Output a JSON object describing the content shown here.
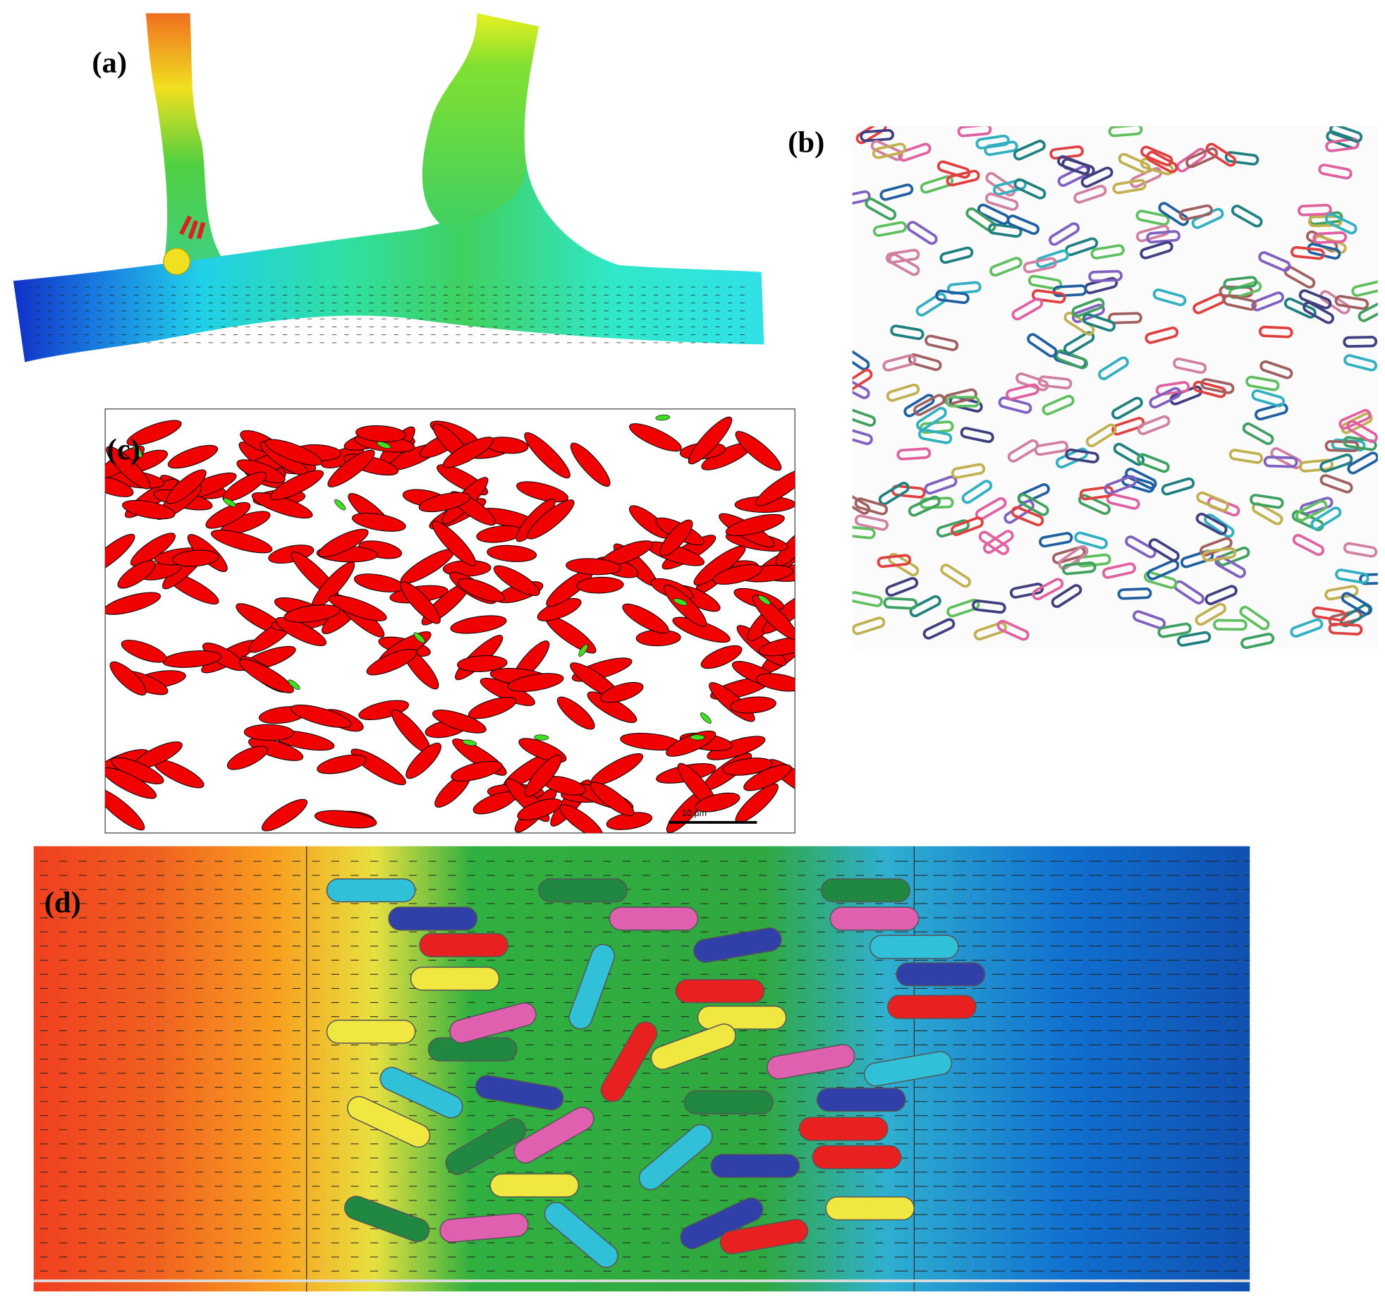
{
  "panels": {
    "a": {
      "label": "(a)"
    },
    "b": {
      "label": "(b)"
    },
    "c": {
      "label": "(c)",
      "scale_bar": "10 µm"
    },
    "d": {
      "label": "(d)"
    }
  }
}
